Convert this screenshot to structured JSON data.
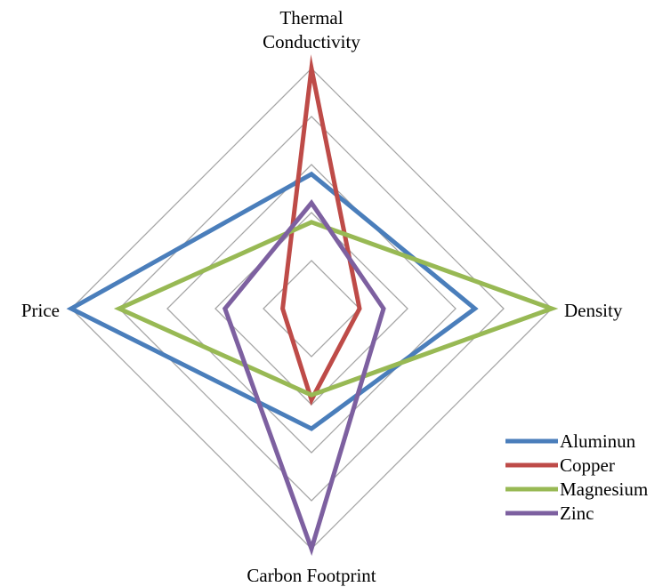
{
  "chart_data": {
    "type": "radar",
    "axes": [
      "Thermal Conductivity",
      "Density",
      "Carbon Footprint",
      "Price"
    ],
    "axis_label_lines": [
      [
        "Thermal",
        "Conductivity"
      ],
      [
        "Density"
      ],
      [
        "Carbon Footprint"
      ],
      [
        "Price"
      ]
    ],
    "range": [
      0,
      5
    ],
    "grid_levels": 5,
    "grid": true,
    "legend_position": "bottom-right",
    "series": [
      {
        "name": "Aluminun",
        "color": "#4a7ebb",
        "values": [
          2.8,
          3.4,
          2.5,
          5.0
        ]
      },
      {
        "name": "Copper",
        "color": "#be4b48",
        "values": [
          5.0,
          1.0,
          1.9,
          0.6
        ]
      },
      {
        "name": "Magnesium",
        "color": "#98b954",
        "values": [
          1.8,
          5.0,
          1.8,
          4.0
        ]
      },
      {
        "name": "Zinc",
        "color": "#7d60a0",
        "values": [
          2.2,
          1.5,
          5.0,
          1.8
        ]
      }
    ]
  }
}
